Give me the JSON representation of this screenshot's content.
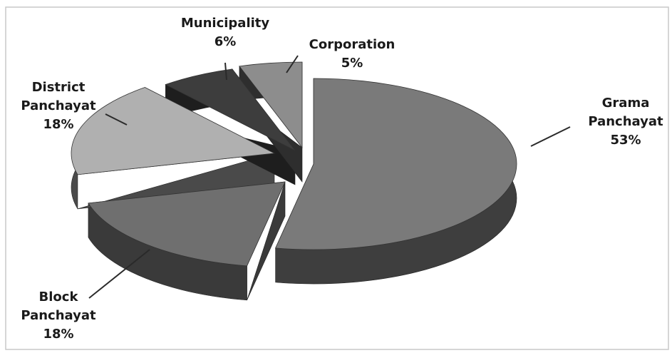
{
  "chart_data": {
    "type": "pie",
    "title": "",
    "slices": [
      {
        "name_lines": [
          "Grama",
          "Panchayat"
        ],
        "percent_label": "53%",
        "value": 53,
        "color": "#7a7a7a",
        "side": "#3e3e3e"
      },
      {
        "name_lines": [
          "Block",
          "Panchayat"
        ],
        "percent_label": "18%",
        "value": 18,
        "color": "#6f6f6f",
        "side": "#3a3a3a"
      },
      {
        "name_lines": [
          "District",
          "Panchayat"
        ],
        "percent_label": "18%",
        "value": 18,
        "color": "#b0b0b0",
        "side": "#4a4a4a"
      },
      {
        "name_lines": [
          "Municipality"
        ],
        "percent_label": "6%",
        "value": 6,
        "color": "#3d3d3d",
        "side": "#1e1e1e"
      },
      {
        "name_lines": [
          "Corporation"
        ],
        "percent_label": "5%",
        "value": 5,
        "color": "#8d8d8d",
        "side": "#2e2e2e"
      }
    ],
    "exploded": true,
    "three_d": true,
    "legend": "none"
  }
}
